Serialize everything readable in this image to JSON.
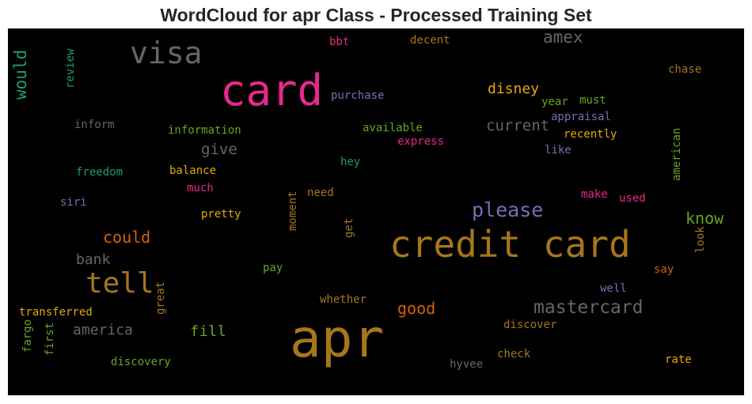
{
  "title": "WordCloud for apr Class - Processed Training Set",
  "colors": {
    "background": "#000000",
    "pink": "#e7298a",
    "brown": "#a6761d",
    "gray": "#666666",
    "teal": "#1b9e77",
    "orange": "#d95f02",
    "purple": "#7570b3",
    "green": "#66a61e",
    "gold": "#e6ab02"
  },
  "words": [
    {
      "text": "apr",
      "color": "#a6761d"
    },
    {
      "text": "credit card",
      "color": "#a6761d"
    },
    {
      "text": "card",
      "color": "#e7298a"
    },
    {
      "text": "visa",
      "color": "#666666"
    },
    {
      "text": "tell",
      "color": "#a6761d"
    },
    {
      "text": "mastercard",
      "color": "#666666"
    },
    {
      "text": "please",
      "color": "#7570b3"
    },
    {
      "text": "amex",
      "color": "#666666"
    },
    {
      "text": "would",
      "color": "#1b9e77"
    },
    {
      "text": "could",
      "color": "#d95f02"
    },
    {
      "text": "know",
      "color": "#66a61e"
    },
    {
      "text": "good",
      "color": "#d95f02"
    },
    {
      "text": "disney",
      "color": "#e6ab02"
    },
    {
      "text": "current",
      "color": "#666666"
    },
    {
      "text": "give",
      "color": "#666666"
    },
    {
      "text": "bank",
      "color": "#666666"
    },
    {
      "text": "america",
      "color": "#666666"
    },
    {
      "text": "fill",
      "color": "#66a61e"
    },
    {
      "text": "purchase",
      "color": "#7570b3"
    },
    {
      "text": "appraisal",
      "color": "#7570b3"
    },
    {
      "text": "recently",
      "color": "#e6ab02"
    },
    {
      "text": "information",
      "color": "#66a61e"
    },
    {
      "text": "available",
      "color": "#66a61e"
    },
    {
      "text": "express",
      "color": "#e7298a"
    },
    {
      "text": "balance",
      "color": "#e6ab02"
    },
    {
      "text": "freedom",
      "color": "#1b9e77"
    },
    {
      "text": "inform",
      "color": "#666666"
    },
    {
      "text": "siri",
      "color": "#7570b3"
    },
    {
      "text": "much",
      "color": "#e7298a"
    },
    {
      "text": "pretty",
      "color": "#e6ab02"
    },
    {
      "text": "need",
      "color": "#a6761d"
    },
    {
      "text": "hey",
      "color": "#1b9e77"
    },
    {
      "text": "make",
      "color": "#e7298a"
    },
    {
      "text": "used",
      "color": "#e7298a"
    },
    {
      "text": "like",
      "color": "#7570b3"
    },
    {
      "text": "year",
      "color": "#66a61e"
    },
    {
      "text": "must",
      "color": "#66a61e"
    },
    {
      "text": "chase",
      "color": "#a6761d"
    },
    {
      "text": "decent",
      "color": "#a6761d"
    },
    {
      "text": "bbt",
      "color": "#e7298a"
    },
    {
      "text": "pay",
      "color": "#66a61e"
    },
    {
      "text": "say",
      "color": "#d95f02"
    },
    {
      "text": "well",
      "color": "#7570b3"
    },
    {
      "text": "whether",
      "color": "#a6761d"
    },
    {
      "text": "discover",
      "color": "#a6761d"
    },
    {
      "text": "transferred",
      "color": "#e6ab02"
    },
    {
      "text": "discovery",
      "color": "#66a61e"
    },
    {
      "text": "check",
      "color": "#a6761d"
    },
    {
      "text": "hyvee",
      "color": "#666666"
    },
    {
      "text": "rate",
      "color": "#e6ab02"
    },
    {
      "text": "review",
      "color": "#1b9e77"
    },
    {
      "text": "moment",
      "color": "#a6761d"
    },
    {
      "text": "get",
      "color": "#a6761d"
    },
    {
      "text": "great",
      "color": "#a6761d"
    },
    {
      "text": "fargo",
      "color": "#66a61e"
    },
    {
      "text": "first",
      "color": "#66a61e"
    },
    {
      "text": "american",
      "color": "#66a61e"
    },
    {
      "text": "look",
      "color": "#a6761d"
    }
  ]
}
